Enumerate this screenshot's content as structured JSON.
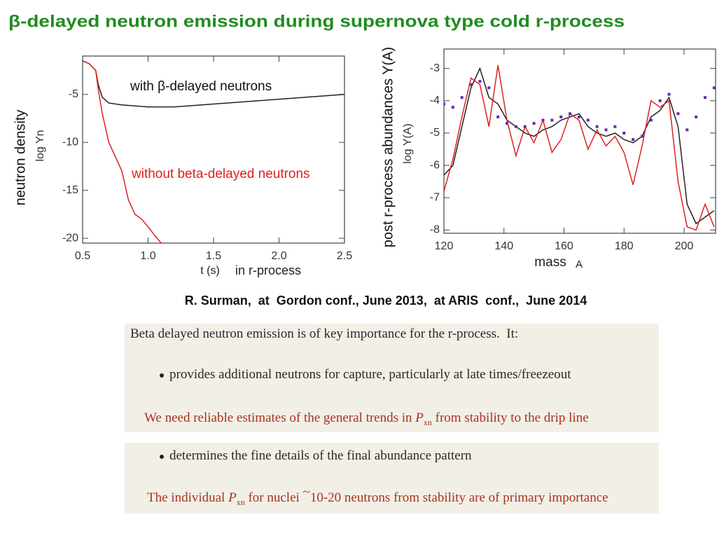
{
  "title": "β-delayed neutron emission during supernova type cold r-process",
  "citation": "R. Surman,  at  Gordon conf., June 2013,  at ARIS  conf.,  June 2014",
  "box1": {
    "heading": "Beta delayed neutron emission is of key importance for the r-process.  It:",
    "bullet": "provides additional neutrons for capture, particularly at late times/freezeout",
    "note": [
      "We need reliable estimates of the general trends in ",
      "P",
      "xn",
      " from stability to the drip line"
    ]
  },
  "box2": {
    "bullet": "determines the fine details of the final abundance pattern",
    "note": [
      "The individual ",
      "P",
      "xn",
      " for nuclei ",
      "~",
      "10-20 neutrons from stability are of primary importance"
    ]
  },
  "chart_data": [
    {
      "type": "line",
      "ylabel": "neutron density",
      "ylabel_log": "log Yn",
      "xlabel": "t (s)",
      "xlabel_note": "in r-process",
      "xlim": [
        0.5,
        2.5
      ],
      "xticks": [
        0.5,
        {
          "value": 1,
          "label": "1.0"
        },
        1.5,
        {
          "value": 2,
          "label": "2.0"
        },
        2.5
      ],
      "ylim": [
        -20.5,
        -1
      ],
      "yticks": [
        -5,
        -10,
        -15,
        -20
      ],
      "series": [
        {
          "name": "with β-delayed neutrons",
          "color": "#222222",
          "x": [
            0.5,
            0.55,
            0.6,
            0.62,
            0.65,
            0.7,
            0.8,
            1.0,
            1.2,
            1.5,
            2.0,
            2.5
          ],
          "values": [
            -1.5,
            -1.8,
            -2.5,
            -4,
            -5.3,
            -5.9,
            -6.1,
            -6.3,
            -6.3,
            -6.0,
            -5.5,
            -5.0
          ]
        },
        {
          "name": "without beta-delayed neutrons",
          "color": "#e02020",
          "x": [
            0.5,
            0.55,
            0.6,
            0.62,
            0.65,
            0.7,
            0.75,
            0.8,
            0.85,
            0.9,
            0.95,
            1.0,
            1.05,
            1.1
          ],
          "values": [
            -1.5,
            -1.8,
            -2.5,
            -4.5,
            -7,
            -10,
            -11.5,
            -13,
            -16,
            -17.5,
            -18,
            -18.8,
            -19.7,
            -20.5
          ]
        }
      ]
    },
    {
      "type": "line",
      "ylabel": "post r-process abundances Y(A)",
      "ylabel_log": "log Y(A)",
      "xlabel": "mass",
      "xlabel_note": "A",
      "xlim": [
        120,
        210.5
      ],
      "xticks": [
        120,
        140,
        160,
        180,
        200
      ],
      "ylim": [
        -8.1,
        -2.4
      ],
      "yticks": [
        -3,
        -4,
        -5,
        -6,
        -7,
        -8
      ],
      "x": [
        120,
        123,
        126,
        129,
        132,
        135,
        138,
        141,
        144,
        147,
        150,
        153,
        156,
        159,
        162,
        165,
        168,
        171,
        174,
        177,
        180,
        183,
        186,
        189,
        192,
        195,
        198,
        201,
        204,
        207,
        210
      ],
      "series": [
        {
          "color": "#222222",
          "values": [
            -6.3,
            -6.0,
            -4.8,
            -3.6,
            -3.0,
            -3.9,
            -4.1,
            -4.6,
            -4.8,
            -5.0,
            -5.1,
            -4.9,
            -4.8,
            -4.6,
            -4.5,
            -4.4,
            -4.8,
            -5.0,
            -5.1,
            -5.0,
            -5.2,
            -5.3,
            -5.1,
            -4.5,
            -4.3,
            -3.9,
            -4.8,
            -7.2,
            -7.8,
            -7.6,
            -7.4
          ]
        },
        {
          "color": "#e02020",
          "values": [
            -6.8,
            -5.8,
            -4.5,
            -3.3,
            -3.5,
            -4.8,
            -2.9,
            -4.6,
            -5.7,
            -4.8,
            -5.3,
            -4.6,
            -5.6,
            -5.2,
            -4.4,
            -4.6,
            -5.5,
            -4.9,
            -5.4,
            -5.1,
            -5.6,
            -6.6,
            -5.4,
            -4.0,
            -4.2,
            -4.0,
            -6.5,
            -7.9,
            -8.0,
            -7.2,
            -7.9
          ]
        },
        {
          "color": "#6a2aa8",
          "linestyle": "none",
          "marker": "square",
          "values": [
            -4.1,
            -4.2,
            -3.9,
            -3.5,
            -3.4,
            -3.6,
            -4.5,
            -4.7,
            -4.8,
            -4.8,
            -4.7,
            -4.6,
            -4.6,
            -4.5,
            -4.4,
            -4.5,
            -4.6,
            -4.8,
            -4.9,
            -4.8,
            -5.0,
            -5.2,
            -5.1,
            -4.6,
            -4.0,
            -3.8,
            -4.4,
            -4.9,
            -4.5,
            -3.9,
            -3.6
          ]
        }
      ]
    }
  ]
}
